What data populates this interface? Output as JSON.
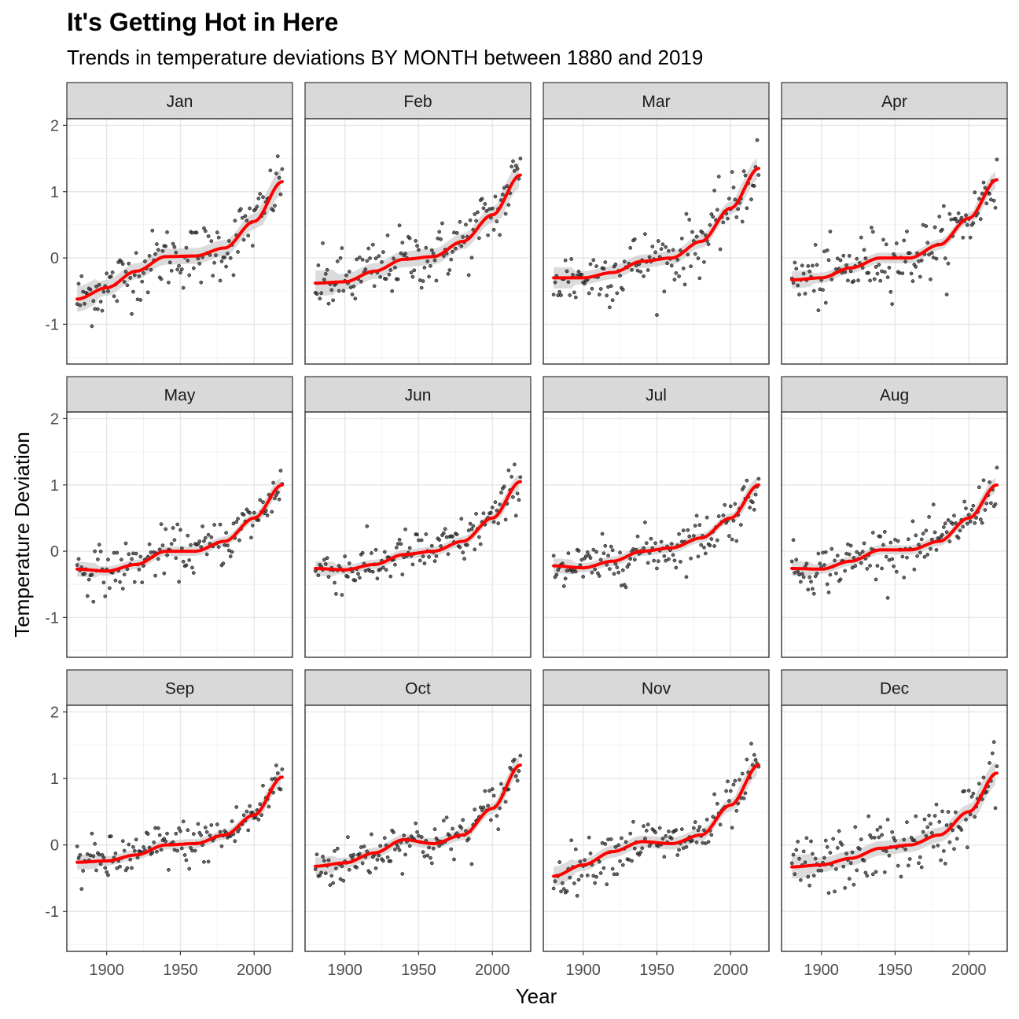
{
  "chart_data": {
    "type": "scatter",
    "title": "It's Getting Hot in Here",
    "subtitle": "Trends in temperature deviations BY MONTH between 1880 and 2019",
    "xlabel": "Year",
    "ylabel": "Temperature Deviation",
    "xlim": [
      1873,
      2026
    ],
    "ylim": [
      -1.6,
      2.1
    ],
    "x_ticks": [
      1900,
      1950,
      2000
    ],
    "y_ticks": [
      -1,
      0,
      1,
      2
    ],
    "grid": true,
    "smooth_color": "#ff0000",
    "point_color": "#333333",
    "band_color": "#bdbdbd",
    "facets": [
      {
        "label": "Jan",
        "trend": [
          [
            1880,
            -0.62
          ],
          [
            1900,
            -0.45
          ],
          [
            1920,
            -0.2
          ],
          [
            1940,
            0.02
          ],
          [
            1960,
            0.03
          ],
          [
            1980,
            0.15
          ],
          [
            2000,
            0.55
          ],
          [
            2019,
            1.15
          ]
        ],
        "band": 0.12
      },
      {
        "label": "Feb",
        "trend": [
          [
            1880,
            -0.38
          ],
          [
            1900,
            -0.36
          ],
          [
            1920,
            -0.2
          ],
          [
            1940,
            -0.02
          ],
          [
            1960,
            0.02
          ],
          [
            1980,
            0.25
          ],
          [
            2000,
            0.65
          ],
          [
            2019,
            1.25
          ]
        ],
        "band": 0.12
      },
      {
        "label": "Mar",
        "trend": [
          [
            1880,
            -0.3
          ],
          [
            1900,
            -0.3
          ],
          [
            1920,
            -0.22
          ],
          [
            1940,
            -0.05
          ],
          [
            1960,
            0.0
          ],
          [
            1980,
            0.25
          ],
          [
            2000,
            0.75
          ],
          [
            2019,
            1.35
          ]
        ],
        "band": 0.1
      },
      {
        "label": "Apr",
        "trend": [
          [
            1880,
            -0.33
          ],
          [
            1900,
            -0.3
          ],
          [
            1920,
            -0.15
          ],
          [
            1940,
            0.0
          ],
          [
            1960,
            0.0
          ],
          [
            1980,
            0.2
          ],
          [
            2000,
            0.6
          ],
          [
            2019,
            1.18
          ]
        ],
        "band": 0.08
      },
      {
        "label": "May",
        "trend": [
          [
            1880,
            -0.27
          ],
          [
            1900,
            -0.3
          ],
          [
            1920,
            -0.2
          ],
          [
            1940,
            0.0
          ],
          [
            1960,
            0.0
          ],
          [
            1980,
            0.15
          ],
          [
            2000,
            0.5
          ],
          [
            2019,
            1.0
          ]
        ],
        "band": 0.07
      },
      {
        "label": "Jun",
        "trend": [
          [
            1880,
            -0.26
          ],
          [
            1900,
            -0.28
          ],
          [
            1920,
            -0.2
          ],
          [
            1940,
            -0.05
          ],
          [
            1960,
            0.0
          ],
          [
            1980,
            0.15
          ],
          [
            2000,
            0.5
          ],
          [
            2019,
            1.05
          ]
        ],
        "band": 0.07
      },
      {
        "label": "Jul",
        "trend": [
          [
            1880,
            -0.22
          ],
          [
            1900,
            -0.25
          ],
          [
            1920,
            -0.15
          ],
          [
            1940,
            0.0
          ],
          [
            1960,
            0.05
          ],
          [
            1980,
            0.2
          ],
          [
            2000,
            0.5
          ],
          [
            2019,
            1.0
          ]
        ],
        "band": 0.07
      },
      {
        "label": "Aug",
        "trend": [
          [
            1880,
            -0.26
          ],
          [
            1900,
            -0.27
          ],
          [
            1920,
            -0.15
          ],
          [
            1940,
            0.02
          ],
          [
            1960,
            0.02
          ],
          [
            1980,
            0.15
          ],
          [
            2000,
            0.5
          ],
          [
            2019,
            1.0
          ]
        ],
        "band": 0.07
      },
      {
        "label": "Sep",
        "trend": [
          [
            1880,
            -0.26
          ],
          [
            1900,
            -0.24
          ],
          [
            1920,
            -0.15
          ],
          [
            1940,
            0.0
          ],
          [
            1960,
            0.02
          ],
          [
            1980,
            0.15
          ],
          [
            2000,
            0.45
          ],
          [
            2019,
            1.02
          ]
        ],
        "band": 0.07
      },
      {
        "label": "Oct",
        "trend": [
          [
            1880,
            -0.32
          ],
          [
            1900,
            -0.27
          ],
          [
            1920,
            -0.12
          ],
          [
            1940,
            0.08
          ],
          [
            1960,
            0.02
          ],
          [
            1980,
            0.15
          ],
          [
            2000,
            0.55
          ],
          [
            2019,
            1.2
          ]
        ],
        "band": 0.08
      },
      {
        "label": "Nov",
        "trend": [
          [
            1880,
            -0.47
          ],
          [
            1900,
            -0.3
          ],
          [
            1920,
            -0.1
          ],
          [
            1940,
            0.05
          ],
          [
            1960,
            0.02
          ],
          [
            1980,
            0.15
          ],
          [
            2000,
            0.6
          ],
          [
            2019,
            1.2
          ]
        ],
        "band": 0.09
      },
      {
        "label": "Dec",
        "trend": [
          [
            1880,
            -0.33
          ],
          [
            1900,
            -0.3
          ],
          [
            1920,
            -0.2
          ],
          [
            1940,
            -0.05
          ],
          [
            1960,
            0.0
          ],
          [
            1980,
            0.15
          ],
          [
            2000,
            0.5
          ],
          [
            2019,
            1.08
          ]
        ],
        "band": 0.11
      }
    ]
  }
}
